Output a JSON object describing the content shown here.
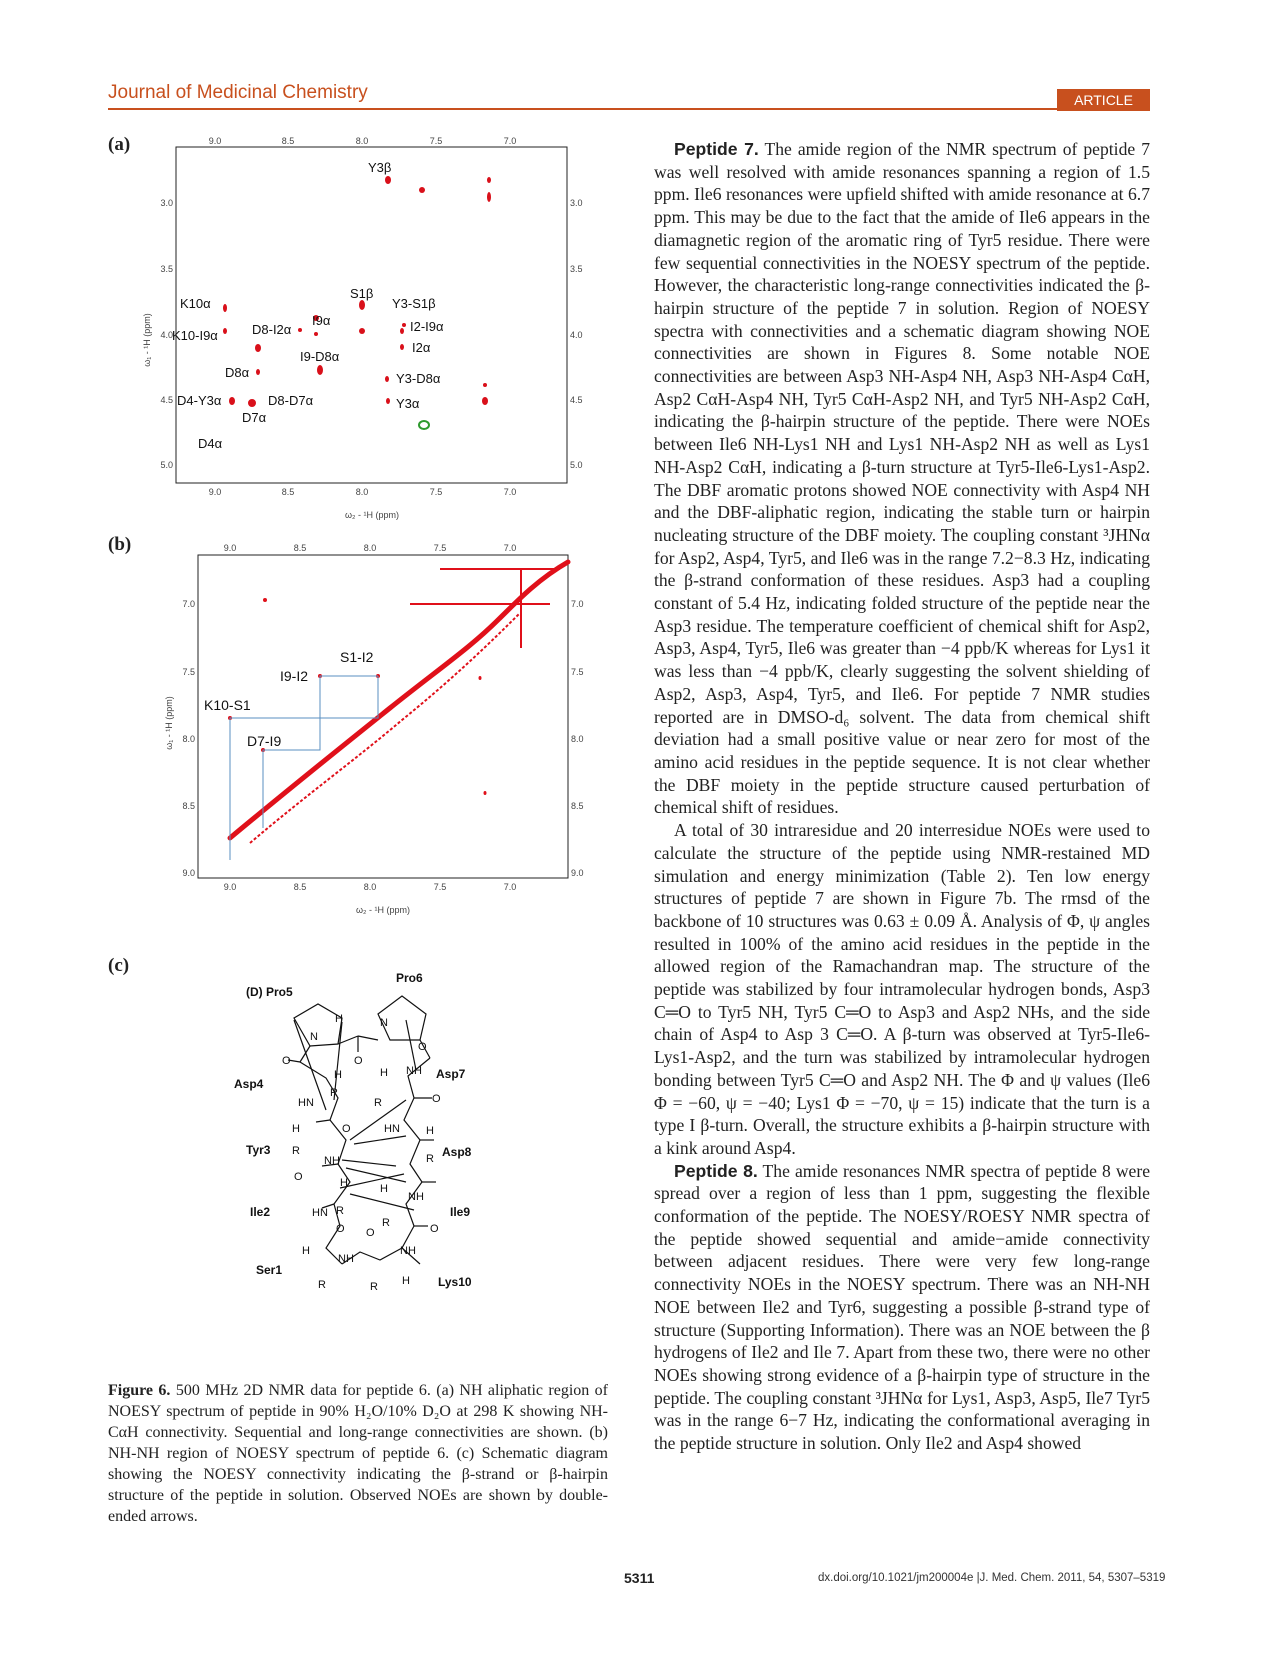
{
  "header": {
    "journal": "Journal of Medicinal Chemistry",
    "badge": "ARTICLE"
  },
  "panel_labels": [
    "(a)",
    "(b)",
    "(c)"
  ],
  "figure_a": {
    "x_ticks": [
      "9.0",
      "8.5",
      "8.0",
      "7.5",
      "7.0"
    ],
    "y_ticks": [
      "3.0",
      "3.5",
      "4.0",
      "4.5",
      "5.0"
    ],
    "xlabel": "ω₂ - ¹H (ppm)",
    "ylabel": "ω₁ - ¹H (ppm)",
    "peak_labels": [
      "Y3β",
      "S1β",
      "Y3-S1β",
      "K10α",
      "I9α",
      "I2-I9α",
      "K10-I9α",
      "D8-I2α",
      "I2α",
      "I9-D8α",
      "D8α",
      "Y3-D8α",
      "D4-Y3α",
      "D8-D7α",
      "Y3α",
      "D7α",
      "D4α"
    ]
  },
  "figure_b": {
    "x_ticks": [
      "9.0",
      "8.5",
      "8.0",
      "7.5",
      "7.0"
    ],
    "y_ticks": [
      "7.0",
      "7.5",
      "8.0",
      "8.5",
      "9.0"
    ],
    "xlabel": "ω₂ - ¹H (ppm)",
    "ylabel": "ω₁ - ¹H (ppm)",
    "peak_labels": [
      "S1-I2",
      "I9-I2",
      "K10-S1",
      "D7-I9"
    ]
  },
  "figure_c": {
    "labels": [
      "(D) Pro5",
      "Pro6",
      "Asp4",
      "Asp7",
      "Tyr3",
      "Asp8",
      "Ile2",
      "Ile9",
      "Ser1",
      "Lys10"
    ]
  },
  "caption": {
    "label": "Figure 6.",
    "text": " 500 MHz 2D NMR data for peptide 6. (a) NH aliphatic region of NOESY spectrum of peptide in 90% H₂O/10% D₂O at 298 K showing NH-CαH connectivity. Sequential and long-range connectivities are shown. (b) NH-NH region of NOESY spectrum of peptide 6. (c) Schematic diagram showing the NOESY connectivity indicating the β-strand or β-hairpin structure of the peptide in solution. Observed NOEs are shown by double-ended arrows."
  },
  "body": [
    {
      "heading": "Peptide 7.",
      "text": " The amide region of the NMR spectrum of peptide 7 was well resolved with amide resonances spanning a region of 1.5 ppm. Ile6 resonances were upfield shifted with amide resonance at 6.7 ppm. This may be due to the fact that the amide of Ile6 appears in the diamagnetic region of the aromatic ring of Tyr5 residue. There were few sequential connectivities in the NOESY spectrum of the peptide. However, the characteristic long-range connectivities indicated the β-hairpin structure of the peptide 7 in solution. Region of NOESY spectra with connectivities and a schematic diagram showing NOE connectivities are shown in Figures 8. Some notable NOE connectivities are between Asp3 NH-Asp4 NH, Asp3 NH-Asp4 CαH, Asp2 CαH-Asp4 NH, Tyr5 CαH-Asp2 NH, and Tyr5 NH-Asp2 CαH, indicating the β-hairpin structure of the peptide. There were NOEs between Ile6 NH-Lys1 NH and Lys1 NH-Asp2 NH as well as Lys1 NH-Asp2 CαH, indicating a β-turn structure at Tyr5-Ile6-Lys1-Asp2. The DBF aromatic protons showed NOE connectivity with Asp4 NH and the DBF-aliphatic region, indicating the stable turn or hairpin nucleating structure of the DBF moiety. The coupling constant ³JHNα for Asp2, Asp4, Tyr5, and Ile6 was in the range 7.2−8.3 Hz, indicating the β-strand conformation of these residues. Asp3 had a coupling constant of 5.4 Hz, indicating folded structure of the peptide near the Asp3 residue. The temperature coefficient of chemical shift for Asp2, Asp3, Asp4, Tyr5, Ile6 was greater than −4 ppb/K whereas for Lys1 it was less than −4 ppb/K, clearly suggesting the solvent shielding of Asp2, Asp3, Asp4, Tyr5, and Ile6. For peptide 7 NMR studies reported are in DMSO-d₆ solvent. The data from chemical shift deviation had a small positive value or near zero for most of the amino acid residues in the peptide sequence. It is not clear whether the DBF moiety in the peptide structure caused perturbation of chemical shift of residues."
    },
    {
      "heading": "",
      "text": "A total of 30 intraresidue and 20 interresidue NOEs were used to calculate the structure of the peptide using NMR-restained MD simulation and energy minimization (Table 2). Ten low energy structures of peptide 7 are shown in Figure 7b. The rmsd of the backbone of 10 structures was 0.63 ± 0.09 Å. Analysis of Φ, ψ angles resulted in 100% of the amino acid residues in the peptide in the allowed region of the Ramachandran map. The structure of the peptide was stabilized by four intramolecular hydrogen bonds, Asp3 C═O to Tyr5 NH, Tyr5 C═O to Asp3 and Asp2 NHs, and the side chain of Asp4 to Asp 3 C═O. A β-turn was observed at Tyr5-Ile6-Lys1-Asp2, and the turn was stabilized by intramolecular hydrogen bonding between Tyr5 C═O and Asp2 NH. The Φ and ψ values (Ile6 Φ = −60, ψ = −40; Lys1 Φ = −70, ψ = 15) indicate that the turn is a type I β-turn. Overall, the structure exhibits a β-hairpin structure with a kink around Asp4."
    },
    {
      "heading": "Peptide 8.",
      "text": " The amide resonances NMR spectra of peptide 8 were spread over a region of less than 1 ppm, suggesting the flexible conformation of the peptide. The NOESY/ROESY NMR spectra of the peptide showed sequential and amide−amide connectivity between adjacent residues. There were very few long-range connectivity NOEs in the NOESY spectrum. There was an NH-NH NOE between Ile2 and Tyr6, suggesting a possible β-strand type of structure (Supporting Information). There was an NOE between the β hydrogens of Ile2 and Ile 7. Apart from these two, there were no other NOEs showing strong evidence of a β-hairpin type of structure in the peptide. The coupling constant ³JHNα for Lys1, Asp3, Asp5, Ile7 Tyr5 was in the range 6−7 Hz, indicating the conformational averaging in the peptide structure in solution. Only Ile2 and Asp4 showed"
    }
  ],
  "footer": {
    "page": "5311",
    "doi": "dx.doi.org/10.1021/jm200004e |J. Med. Chem. 2011, 54, 5307–5319"
  }
}
